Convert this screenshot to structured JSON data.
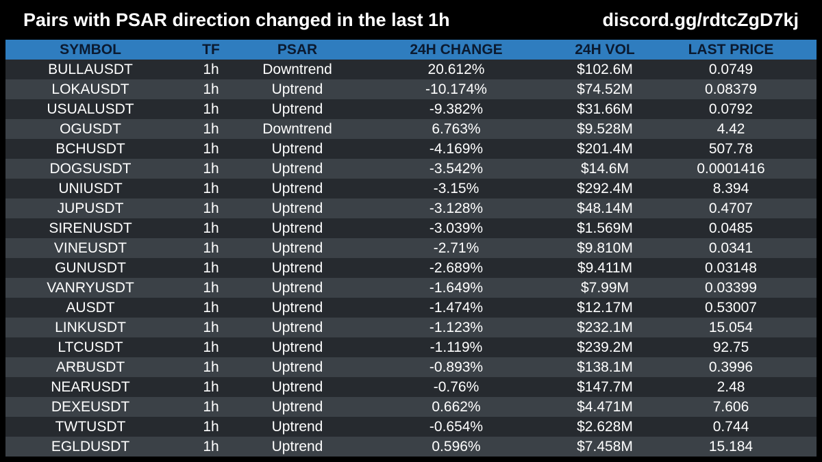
{
  "header": {
    "title": "Pairs with PSAR direction changed in the last 1h",
    "link": "discord.gg/rdtcZgD7kj"
  },
  "table": {
    "columns": [
      "SYMBOL",
      "TF",
      "PSAR",
      "24H CHANGE",
      "24H VOL",
      "LAST PRICE"
    ],
    "rows": [
      [
        "BULLAUSDT",
        "1h",
        "Downtrend",
        "20.612%",
        "$102.6M",
        "0.0749"
      ],
      [
        "LOKAUSDT",
        "1h",
        "Uptrend",
        "-10.174%",
        "$74.52M",
        "0.08379"
      ],
      [
        "USUALUSDT",
        "1h",
        "Uptrend",
        "-9.382%",
        "$31.66M",
        "0.0792"
      ],
      [
        "OGUSDT",
        "1h",
        "Downtrend",
        "6.763%",
        "$9.528M",
        "4.42"
      ],
      [
        "BCHUSDT",
        "1h",
        "Uptrend",
        "-4.169%",
        "$201.4M",
        "507.78"
      ],
      [
        "DOGSUSDT",
        "1h",
        "Uptrend",
        "-3.542%",
        "$14.6M",
        "0.0001416"
      ],
      [
        "UNIUSDT",
        "1h",
        "Uptrend",
        "-3.15%",
        "$292.4M",
        "8.394"
      ],
      [
        "JUPUSDT",
        "1h",
        "Uptrend",
        "-3.128%",
        "$48.14M",
        "0.4707"
      ],
      [
        "SIRENUSDT",
        "1h",
        "Uptrend",
        "-3.039%",
        "$1.569M",
        "0.0485"
      ],
      [
        "VINEUSDT",
        "1h",
        "Uptrend",
        "-2.71%",
        "$9.810M",
        "0.0341"
      ],
      [
        "GUNUSDT",
        "1h",
        "Uptrend",
        "-2.689%",
        "$9.411M",
        "0.03148"
      ],
      [
        "VANRYUSDT",
        "1h",
        "Uptrend",
        "-1.649%",
        "$7.99M",
        "0.03399"
      ],
      [
        "AUSDT",
        "1h",
        "Uptrend",
        "-1.474%",
        "$12.17M",
        "0.53007"
      ],
      [
        "LINKUSDT",
        "1h",
        "Uptrend",
        "-1.123%",
        "$232.1M",
        "15.054"
      ],
      [
        "LTCUSDT",
        "1h",
        "Uptrend",
        "-1.119%",
        "$239.2M",
        "92.75"
      ],
      [
        "ARBUSDT",
        "1h",
        "Uptrend",
        "-0.893%",
        "$138.1M",
        "0.3996"
      ],
      [
        "NEARUSDT",
        "1h",
        "Uptrend",
        "-0.76%",
        "$147.7M",
        "2.48"
      ],
      [
        "DEXEUSDT",
        "1h",
        "Uptrend",
        "0.662%",
        "$4.471M",
        "7.606"
      ],
      [
        "TWTUSDT",
        "1h",
        "Uptrend",
        "-0.654%",
        "$2.628M",
        "0.744"
      ],
      [
        "EGLDUSDT",
        "1h",
        "Uptrend",
        "0.596%",
        "$7.458M",
        "15.184"
      ]
    ]
  },
  "colors": {
    "background": "#000000",
    "header_row": "#2f7dbf",
    "row_odd": "#262a2f",
    "row_even": "#3b4147",
    "text": "#ffffff"
  }
}
